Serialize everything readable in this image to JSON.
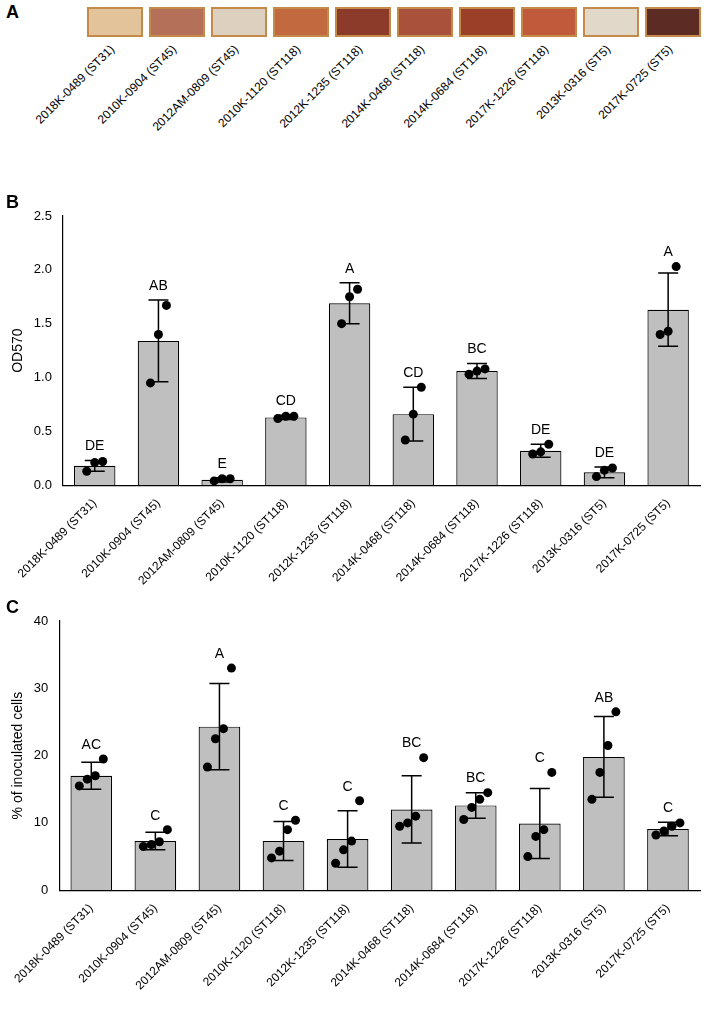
{
  "image_strip": {
    "panel_label": "A",
    "labels": [
      "2018K-0489 (ST31)",
      "2010K-0904 (ST45)",
      "2012AM-0809 (ST45)",
      "2010K-1120 (ST118)",
      "2012K-1235 (ST118)",
      "2014K-0468 (ST118)",
      "2014K-0684 (ST118)",
      "2017K-1226 (ST118)",
      "2013K-0316 (ST5)",
      "2017K-0725 (ST5)"
    ],
    "colors": [
      "#e3c49a",
      "#b5705a",
      "#ddd0bf",
      "#c2693f",
      "#8c3b2a",
      "#a9513a",
      "#9b3f29",
      "#c1593b",
      "#e2d8ca",
      "#5c2b23"
    ]
  },
  "chart_data": [
    {
      "panel_label": "B",
      "type": "bar",
      "categories": [
        "2018K-0489 (ST31)",
        "2010K-0904 (ST45)",
        "2012AM-0809 (ST45)",
        "2010K-1120 (ST118)",
        "2012K-1235 (ST118)",
        "2014K-0468 (ST118)",
        "2014K-0684 (ST118)",
        "2017K-1226 (ST118)",
        "2013K-0316 (ST5)",
        "2017K-0725 (ST5)"
      ],
      "values": [
        0.18,
        1.34,
        0.05,
        0.63,
        1.69,
        0.66,
        1.06,
        0.32,
        0.12,
        1.63
      ],
      "error": [
        0.05,
        0.38,
        0.02,
        0.02,
        0.19,
        0.25,
        0.07,
        0.06,
        0.05,
        0.34
      ],
      "points": [
        [
          0.13,
          0.21,
          0.22
        ],
        [
          0.95,
          1.4,
          1.67
        ],
        [
          0.04,
          0.06,
          0.06
        ],
        [
          0.62,
          0.64,
          0.64
        ],
        [
          1.5,
          1.75,
          1.82
        ],
        [
          0.42,
          0.66,
          0.91
        ],
        [
          1.03,
          1.06,
          1.08
        ],
        [
          0.29,
          0.31,
          0.38
        ],
        [
          0.08,
          0.14,
          0.16
        ],
        [
          1.4,
          1.43,
          2.03
        ]
      ],
      "annotations": [
        "DE",
        "AB",
        "E",
        "CD",
        "A",
        "CD",
        "BC",
        "DE",
        "DE",
        "A"
      ],
      "y_label": "OD570",
      "ylim": [
        0,
        2.5
      ],
      "yticks": [
        {
          "value": 0,
          "label": "0.0"
        },
        0.5,
        {
          "value": 1,
          "label": "1.0"
        },
        1.5,
        {
          "value": 2,
          "label": "2.0"
        },
        2.5
      ],
      "color": "#bfbfbf",
      "grid": false
    },
    {
      "panel_label": "C",
      "type": "bar",
      "categories": [
        "2018K-0489 (ST31)",
        "2010K-0904 (ST45)",
        "2012AM-0809 (ST45)",
        "2010K-1120 (ST118)",
        "2012K-1235 (ST118)",
        "2014K-0468 (ST118)",
        "2014K-0684 (ST118)",
        "2017K-1226 (ST118)",
        "2013K-0316 (ST5)",
        "2017K-0725 (ST5)"
      ],
      "values": [
        17.0,
        7.3,
        24.3,
        7.3,
        7.6,
        12.0,
        12.6,
        9.9,
        19.8,
        9.1
      ],
      "error": [
        2.0,
        1.3,
        6.4,
        2.9,
        4.2,
        5.0,
        1.9,
        5.2,
        6.0,
        1.0
      ],
      "points": [
        [
          15.5,
          16.5,
          17.0,
          19.5
        ],
        [
          6.5,
          6.8,
          7.2,
          9.0
        ],
        [
          18.3,
          22.5,
          24.0,
          33.0
        ],
        [
          4.8,
          5.8,
          9.0,
          10.4
        ],
        [
          4.0,
          6.0,
          7.3,
          13.3
        ],
        [
          9.5,
          10.0,
          11.0,
          19.7
        ],
        [
          10.5,
          12.3,
          13.5,
          14.5
        ],
        [
          5.0,
          8.0,
          9.0,
          17.5
        ],
        [
          13.5,
          17.5,
          21.5,
          26.5
        ],
        [
          8.2,
          8.8,
          9.5,
          10.0
        ]
      ],
      "annotations": [
        "AC",
        "C",
        "A",
        "C",
        "C",
        "BC",
        "BC",
        "C",
        "AB",
        "C"
      ],
      "y_label": "% of inoculated cells",
      "ylim": [
        0,
        40
      ],
      "yticks": [
        0,
        10,
        20,
        30,
        40
      ],
      "color": "#bfbfbf",
      "grid": false
    }
  ]
}
